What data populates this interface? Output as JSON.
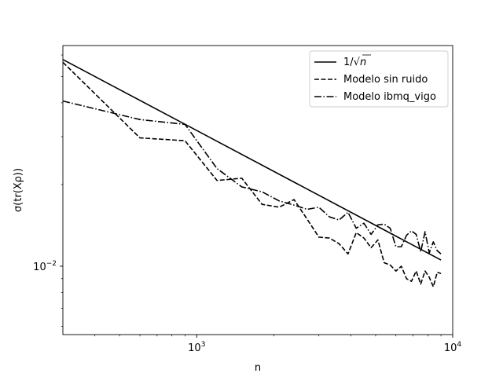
{
  "chart_data": {
    "type": "line",
    "xscale": "log",
    "yscale": "log",
    "xlim": [
      300,
      10000
    ],
    "ylim": [
      0.0056,
      0.065
    ],
    "xlabel": "n",
    "ylabel": "σ(tr(Xρ))",
    "xticks": [
      {
        "value": 1000,
        "base": "10",
        "exp": "3"
      },
      {
        "value": 10000,
        "base": "10",
        "exp": "4"
      }
    ],
    "yticks": [
      {
        "value": 0.01,
        "base": "10",
        "exp": "−2"
      }
    ],
    "legend_position": "upper-right",
    "grid": false,
    "series": [
      {
        "name": "1/√n",
        "legend_label_main": "1/√",
        "legend_label_n": "n",
        "style": "solid",
        "color": "#000000",
        "function": "1/sqrt(n)",
        "x": [
          300,
          9000
        ],
        "y": [
          0.05774,
          0.01054
        ]
      },
      {
        "name": "Modelo sin ruido",
        "style": "dashed",
        "color": "#000000",
        "x": [
          300,
          600,
          900,
          1200,
          1500,
          1800,
          2100,
          2400,
          2700,
          3000,
          3300,
          3600,
          3900,
          4200,
          4500,
          4800,
          5100,
          5400,
          5700,
          6000,
          6300,
          6600,
          6900,
          7200,
          7500,
          7800,
          8100,
          8400,
          8700,
          9000
        ],
        "y": [
          0.0564,
          0.0297,
          0.029,
          0.0207,
          0.0211,
          0.0169,
          0.0165,
          0.0176,
          0.0149,
          0.0128,
          0.0127,
          0.0121,
          0.0111,
          0.0133,
          0.0127,
          0.0117,
          0.0125,
          0.0103,
          0.0101,
          0.0096,
          0.01,
          0.009,
          0.0088,
          0.0096,
          0.0086,
          0.0096,
          0.0091,
          0.0084,
          0.0095,
          0.0094
        ]
      },
      {
        "name": "Modelo ibmq_vigo",
        "style": "dashdot",
        "color": "#000000",
        "x": [
          300,
          600,
          900,
          1200,
          1500,
          1800,
          2100,
          2400,
          2700,
          3000,
          3300,
          3600,
          3900,
          4200,
          4500,
          4800,
          5100,
          5400,
          5700,
          6000,
          6300,
          6600,
          6900,
          7200,
          7500,
          7800,
          8100,
          8400,
          8700,
          9000
        ],
        "y": [
          0.0406,
          0.0347,
          0.0333,
          0.0229,
          0.0196,
          0.0188,
          0.0174,
          0.0168,
          0.0162,
          0.0165,
          0.0152,
          0.0148,
          0.0158,
          0.0138,
          0.0144,
          0.0131,
          0.0142,
          0.0143,
          0.0138,
          0.0118,
          0.0118,
          0.013,
          0.0135,
          0.0131,
          0.0113,
          0.0134,
          0.0112,
          0.0123,
          0.0114,
          0.0111
        ]
      }
    ]
  }
}
